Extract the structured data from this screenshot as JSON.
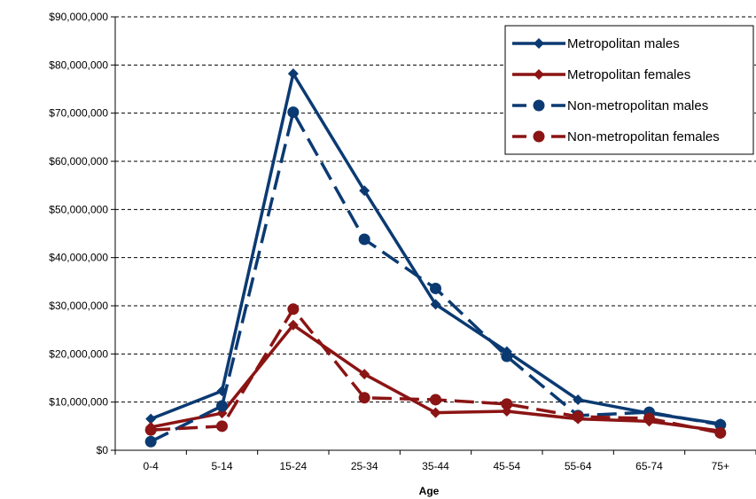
{
  "chart_data": {
    "type": "line",
    "title": "",
    "xlabel": "Age",
    "ylabel": "",
    "categories": [
      "0-4",
      "5-14",
      "15-24",
      "25-34",
      "35-44",
      "45-54",
      "55-64",
      "65-74",
      "75+"
    ],
    "ylim": [
      0,
      90000000
    ],
    "ytick_labels": [
      "$0",
      "$10,000,000",
      "$20,000,000",
      "$30,000,000",
      "$40,000,000",
      "$50,000,000",
      "$60,000,000",
      "$70,000,000",
      "$80,000,000",
      "$90,000,000"
    ],
    "grid": "horizontal dashed",
    "legend_position": "top-right",
    "series": [
      {
        "name": "Metropolitan males",
        "color": "#0b3a72",
        "line": "solid",
        "marker": "diamond",
        "values": [
          6500000,
          12300000,
          78200000,
          53900000,
          30300000,
          20500000,
          10500000,
          7700000,
          5500000
        ]
      },
      {
        "name": "Metropolitan females",
        "color": "#8b1414",
        "line": "solid",
        "marker": "diamond",
        "values": [
          4800000,
          7700000,
          26000000,
          15800000,
          7800000,
          8100000,
          6500000,
          6000000,
          4000000
        ]
      },
      {
        "name": "Non-metropolitan males",
        "color": "#0b3a72",
        "line": "dashed",
        "marker": "circle",
        "values": [
          1800000,
          9200000,
          70200000,
          43800000,
          33600000,
          19500000,
          7200000,
          7900000,
          5300000
        ]
      },
      {
        "name": "Non-metropolitan females",
        "color": "#8b1414",
        "line": "dashed",
        "marker": "circle",
        "values": [
          4200000,
          5000000,
          29300000,
          10900000,
          10500000,
          9600000,
          7000000,
          6600000,
          3600000
        ]
      }
    ]
  }
}
